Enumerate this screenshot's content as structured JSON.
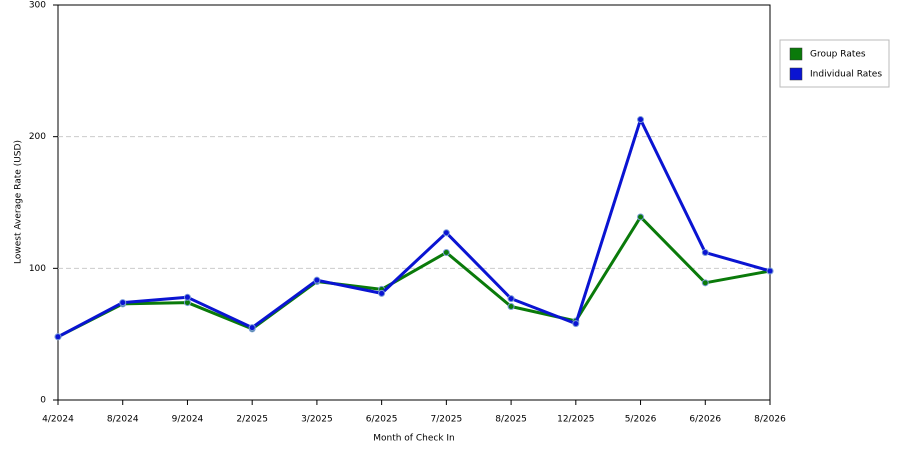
{
  "chart_data": {
    "type": "line",
    "x_label": "Month of Check In",
    "y_label": "Lowest Average Rate (USD)",
    "categories": [
      "4/2024",
      "8/2024",
      "9/2024",
      "2/2025",
      "3/2025",
      "6/2025",
      "7/2025",
      "8/2025",
      "12/2025",
      "5/2026",
      "6/2026",
      "8/2026"
    ],
    "series": [
      {
        "name": "Group Rates",
        "color": "#0a7a0a",
        "values": [
          48,
          73,
          74,
          54,
          90,
          84,
          112,
          71,
          60,
          139,
          89,
          98
        ]
      },
      {
        "name": "Individual Rates",
        "color": "#0a14d2",
        "values": [
          48,
          74,
          78,
          55,
          91,
          81,
          127,
          77,
          58,
          213,
          112,
          98
        ]
      }
    ],
    "ylim": [
      0,
      300
    ],
    "yticks": [
      0,
      100,
      200,
      300
    ],
    "grid": true,
    "legend": "right"
  }
}
